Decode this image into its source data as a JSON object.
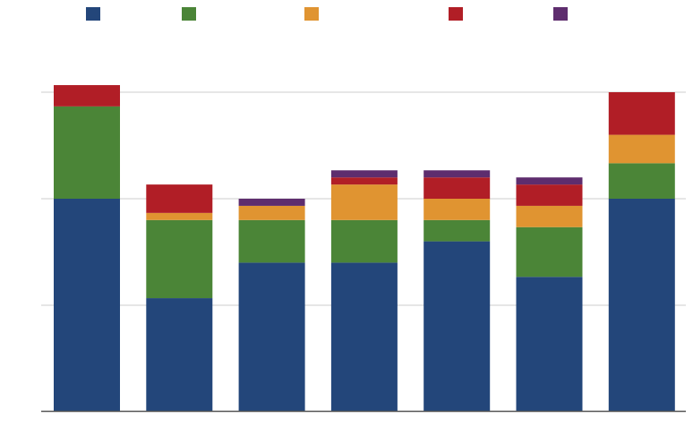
{
  "chart_data": {
    "type": "bar",
    "stacked": true,
    "title": "",
    "xlabel": "",
    "ylabel": "",
    "categories": [
      "",
      "",
      "",
      "",
      "",
      "",
      ""
    ],
    "ylim": [
      0,
      4.5
    ],
    "yticks": [
      0,
      1.5,
      3,
      4.5
    ],
    "grid": true,
    "legend_position": "top",
    "series": [
      {
        "color": "#23467a",
        "values": [
          3.0,
          1.6,
          2.1,
          2.1,
          2.4,
          1.9,
          3.0
        ]
      },
      {
        "color": "#4b8537",
        "values": [
          1.3,
          1.1,
          0.6,
          0.6,
          0.3,
          0.7,
          0.5
        ]
      },
      {
        "color": "#e09431",
        "values": [
          0.0,
          0.1,
          0.2,
          0.5,
          0.3,
          0.3,
          0.4
        ]
      },
      {
        "color": "#b11e26",
        "values": [
          0.3,
          0.4,
          0.0,
          0.1,
          0.3,
          0.3,
          0.6
        ]
      },
      {
        "color": "#5e2d6e",
        "values": [
          0.0,
          0.0,
          0.1,
          0.1,
          0.1,
          0.1,
          0.0
        ]
      }
    ]
  }
}
